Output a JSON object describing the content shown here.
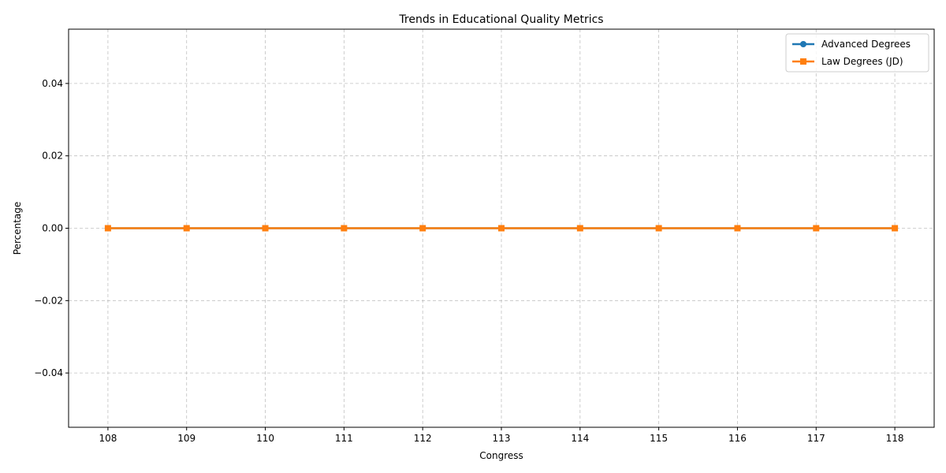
{
  "chart_data": {
    "type": "line",
    "title": "Trends in Educational Quality Metrics",
    "xlabel": "Congress",
    "ylabel": "Percentage",
    "x": [
      108,
      109,
      110,
      111,
      112,
      113,
      114,
      115,
      116,
      117,
      118
    ],
    "xlim": [
      107.5,
      118.5
    ],
    "ylim": [
      -0.055,
      0.055
    ],
    "yticks": [
      -0.04,
      -0.02,
      0.0,
      0.02,
      0.04
    ],
    "ytick_labels": [
      "−0.04",
      "−0.02",
      "0.00",
      "0.02",
      "0.04"
    ],
    "grid": true,
    "legend_position": "top-right",
    "series": [
      {
        "name": "Advanced Degrees",
        "values": [
          0,
          0,
          0,
          0,
          0,
          0,
          0,
          0,
          0,
          0,
          0
        ],
        "color": "#1f77b4",
        "marker": "circle"
      },
      {
        "name": "Law Degrees (JD)",
        "values": [
          0,
          0,
          0,
          0,
          0,
          0,
          0,
          0,
          0,
          0,
          0
        ],
        "color": "#ff7f0e",
        "marker": "square"
      }
    ]
  }
}
